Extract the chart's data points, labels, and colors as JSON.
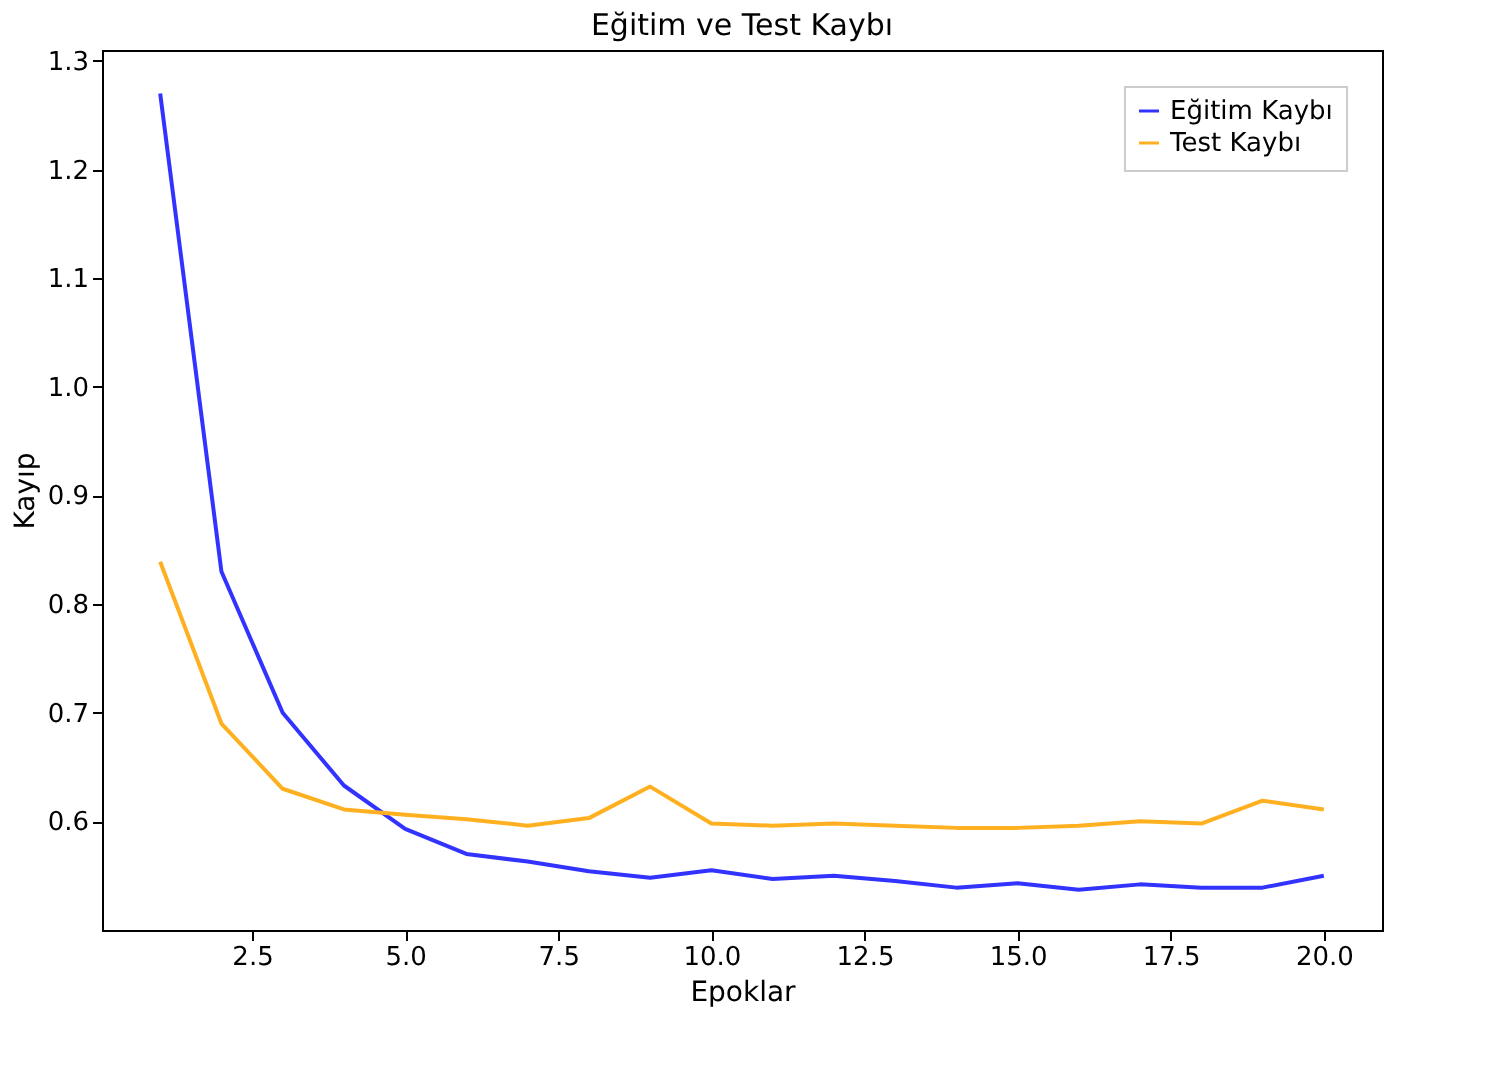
{
  "chart_data": {
    "type": "line",
    "title": "Eğitim ve Test Kaybı",
    "xlabel": "Epoklar",
    "ylabel": "Kayıp",
    "x": [
      1,
      2,
      3,
      4,
      5,
      6,
      7,
      8,
      9,
      10,
      11,
      12,
      13,
      14,
      15,
      16,
      17,
      18,
      19,
      20
    ],
    "series": [
      {
        "name": "Eğitim Kaybı",
        "color": "#3333ff",
        "values": [
          1.27,
          0.83,
          0.7,
          0.633,
          0.593,
          0.57,
          0.563,
          0.554,
          0.548,
          0.555,
          0.547,
          0.55,
          0.545,
          0.539,
          0.543,
          0.537,
          0.542,
          0.539,
          0.539,
          0.55
        ]
      },
      {
        "name": "Test Kaybı",
        "color": "#ffb020",
        "values": [
          0.839,
          0.69,
          0.63,
          0.611,
          0.606,
          0.602,
          0.596,
          0.603,
          0.632,
          0.598,
          0.596,
          0.598,
          0.596,
          0.594,
          0.594,
          0.596,
          0.6,
          0.598,
          0.619,
          0.611
        ]
      }
    ],
    "xlim": [
      0.05,
      20.95
    ],
    "xticks": [
      {
        "value": 2.5,
        "label": "2.5"
      },
      {
        "value": 5,
        "label": "5.0"
      },
      {
        "value": 7.5,
        "label": "7.5"
      },
      {
        "value": 10,
        "label": "10.0"
      },
      {
        "value": 12.5,
        "label": "12.5"
      },
      {
        "value": 15,
        "label": "15.0"
      },
      {
        "value": 17.5,
        "label": "17.5"
      },
      {
        "value": 20,
        "label": "20.0"
      }
    ],
    "ylim": [
      0.5,
      1.31
    ],
    "yticks": [
      {
        "value": 0.6,
        "label": "0.6"
      },
      {
        "value": 0.7,
        "label": "0.7"
      },
      {
        "value": 0.8,
        "label": "0.8"
      },
      {
        "value": 0.9,
        "label": "0.9"
      },
      {
        "value": 1.0,
        "label": "1.0"
      },
      {
        "value": 1.1,
        "label": "1.1"
      },
      {
        "value": 1.2,
        "label": "1.2"
      },
      {
        "value": 1.3,
        "label": "1.3"
      }
    ],
    "grid": false,
    "legend": "top right",
    "marker": "none",
    "line_style": "solid"
  }
}
